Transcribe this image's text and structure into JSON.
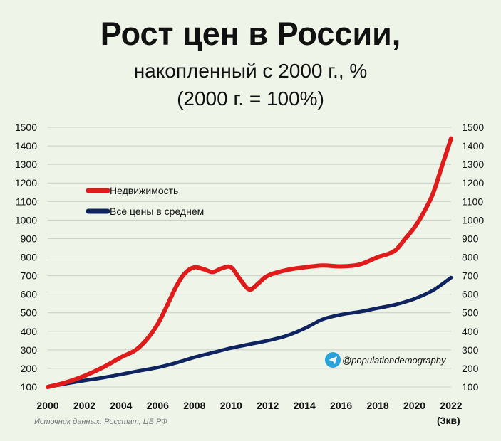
{
  "header": {
    "title": "Рост цен в России,",
    "subtitle": "накопленный с 2000 г., %",
    "subtitle2": "(2000 г. = 100%)"
  },
  "source": "Источник данных: Росстат, ЦБ РФ",
  "telegram_handle": "@populationdemography",
  "colors": {
    "real_estate": "#e01b1b",
    "all_prices": "#0f2360",
    "telegram": "#2aa3dc",
    "grid": "#c9cdc6"
  },
  "chart_data": {
    "type": "line",
    "title": "Рост цен в России,",
    "ylim": [
      100,
      1500
    ],
    "yticks": [
      100,
      200,
      300,
      400,
      500,
      600,
      700,
      800,
      900,
      1000,
      1100,
      1200,
      1300,
      1400,
      1500
    ],
    "xlim": [
      2000,
      2022
    ],
    "xticks": [
      "2000",
      "2002",
      "2004",
      "2006",
      "2008",
      "2010",
      "2012",
      "2014",
      "2016",
      "2018",
      "2020",
      "2022"
    ],
    "xtick_note": "(3кв)",
    "grid": true,
    "dual_y_axis": true,
    "legend_position": "upper-left",
    "series": [
      {
        "name": "Недвижимость",
        "color": "#e01b1b",
        "x": [
          2000,
          2001,
          2002,
          2003,
          2004,
          2005,
          2006,
          2007,
          2007.5,
          2008,
          2008.5,
          2009,
          2009.5,
          2010,
          2010.5,
          2011,
          2011.5,
          2012,
          2013,
          2014,
          2015,
          2016,
          2017,
          2018,
          2018.5,
          2019,
          2019.5,
          2020,
          2020.5,
          2021,
          2021.5,
          2022
        ],
        "values": [
          100,
          125,
          160,
          205,
          260,
          315,
          440,
          640,
          715,
          745,
          735,
          720,
          740,
          745,
          680,
          625,
          660,
          700,
          730,
          745,
          755,
          750,
          760,
          800,
          815,
          840,
          900,
          960,
          1040,
          1140,
          1290,
          1440
        ]
      },
      {
        "name": "Все цены в среднем",
        "color": "#0f2360",
        "x": [
          2000,
          2001,
          2002,
          2003,
          2004,
          2005,
          2006,
          2007,
          2008,
          2009,
          2010,
          2011,
          2012,
          2013,
          2014,
          2015,
          2016,
          2017,
          2018,
          2019,
          2020,
          2021,
          2022
        ],
        "values": [
          100,
          118,
          135,
          150,
          168,
          187,
          205,
          230,
          260,
          285,
          310,
          330,
          350,
          375,
          415,
          465,
          490,
          505,
          525,
          545,
          575,
          620,
          690
        ]
      }
    ]
  }
}
